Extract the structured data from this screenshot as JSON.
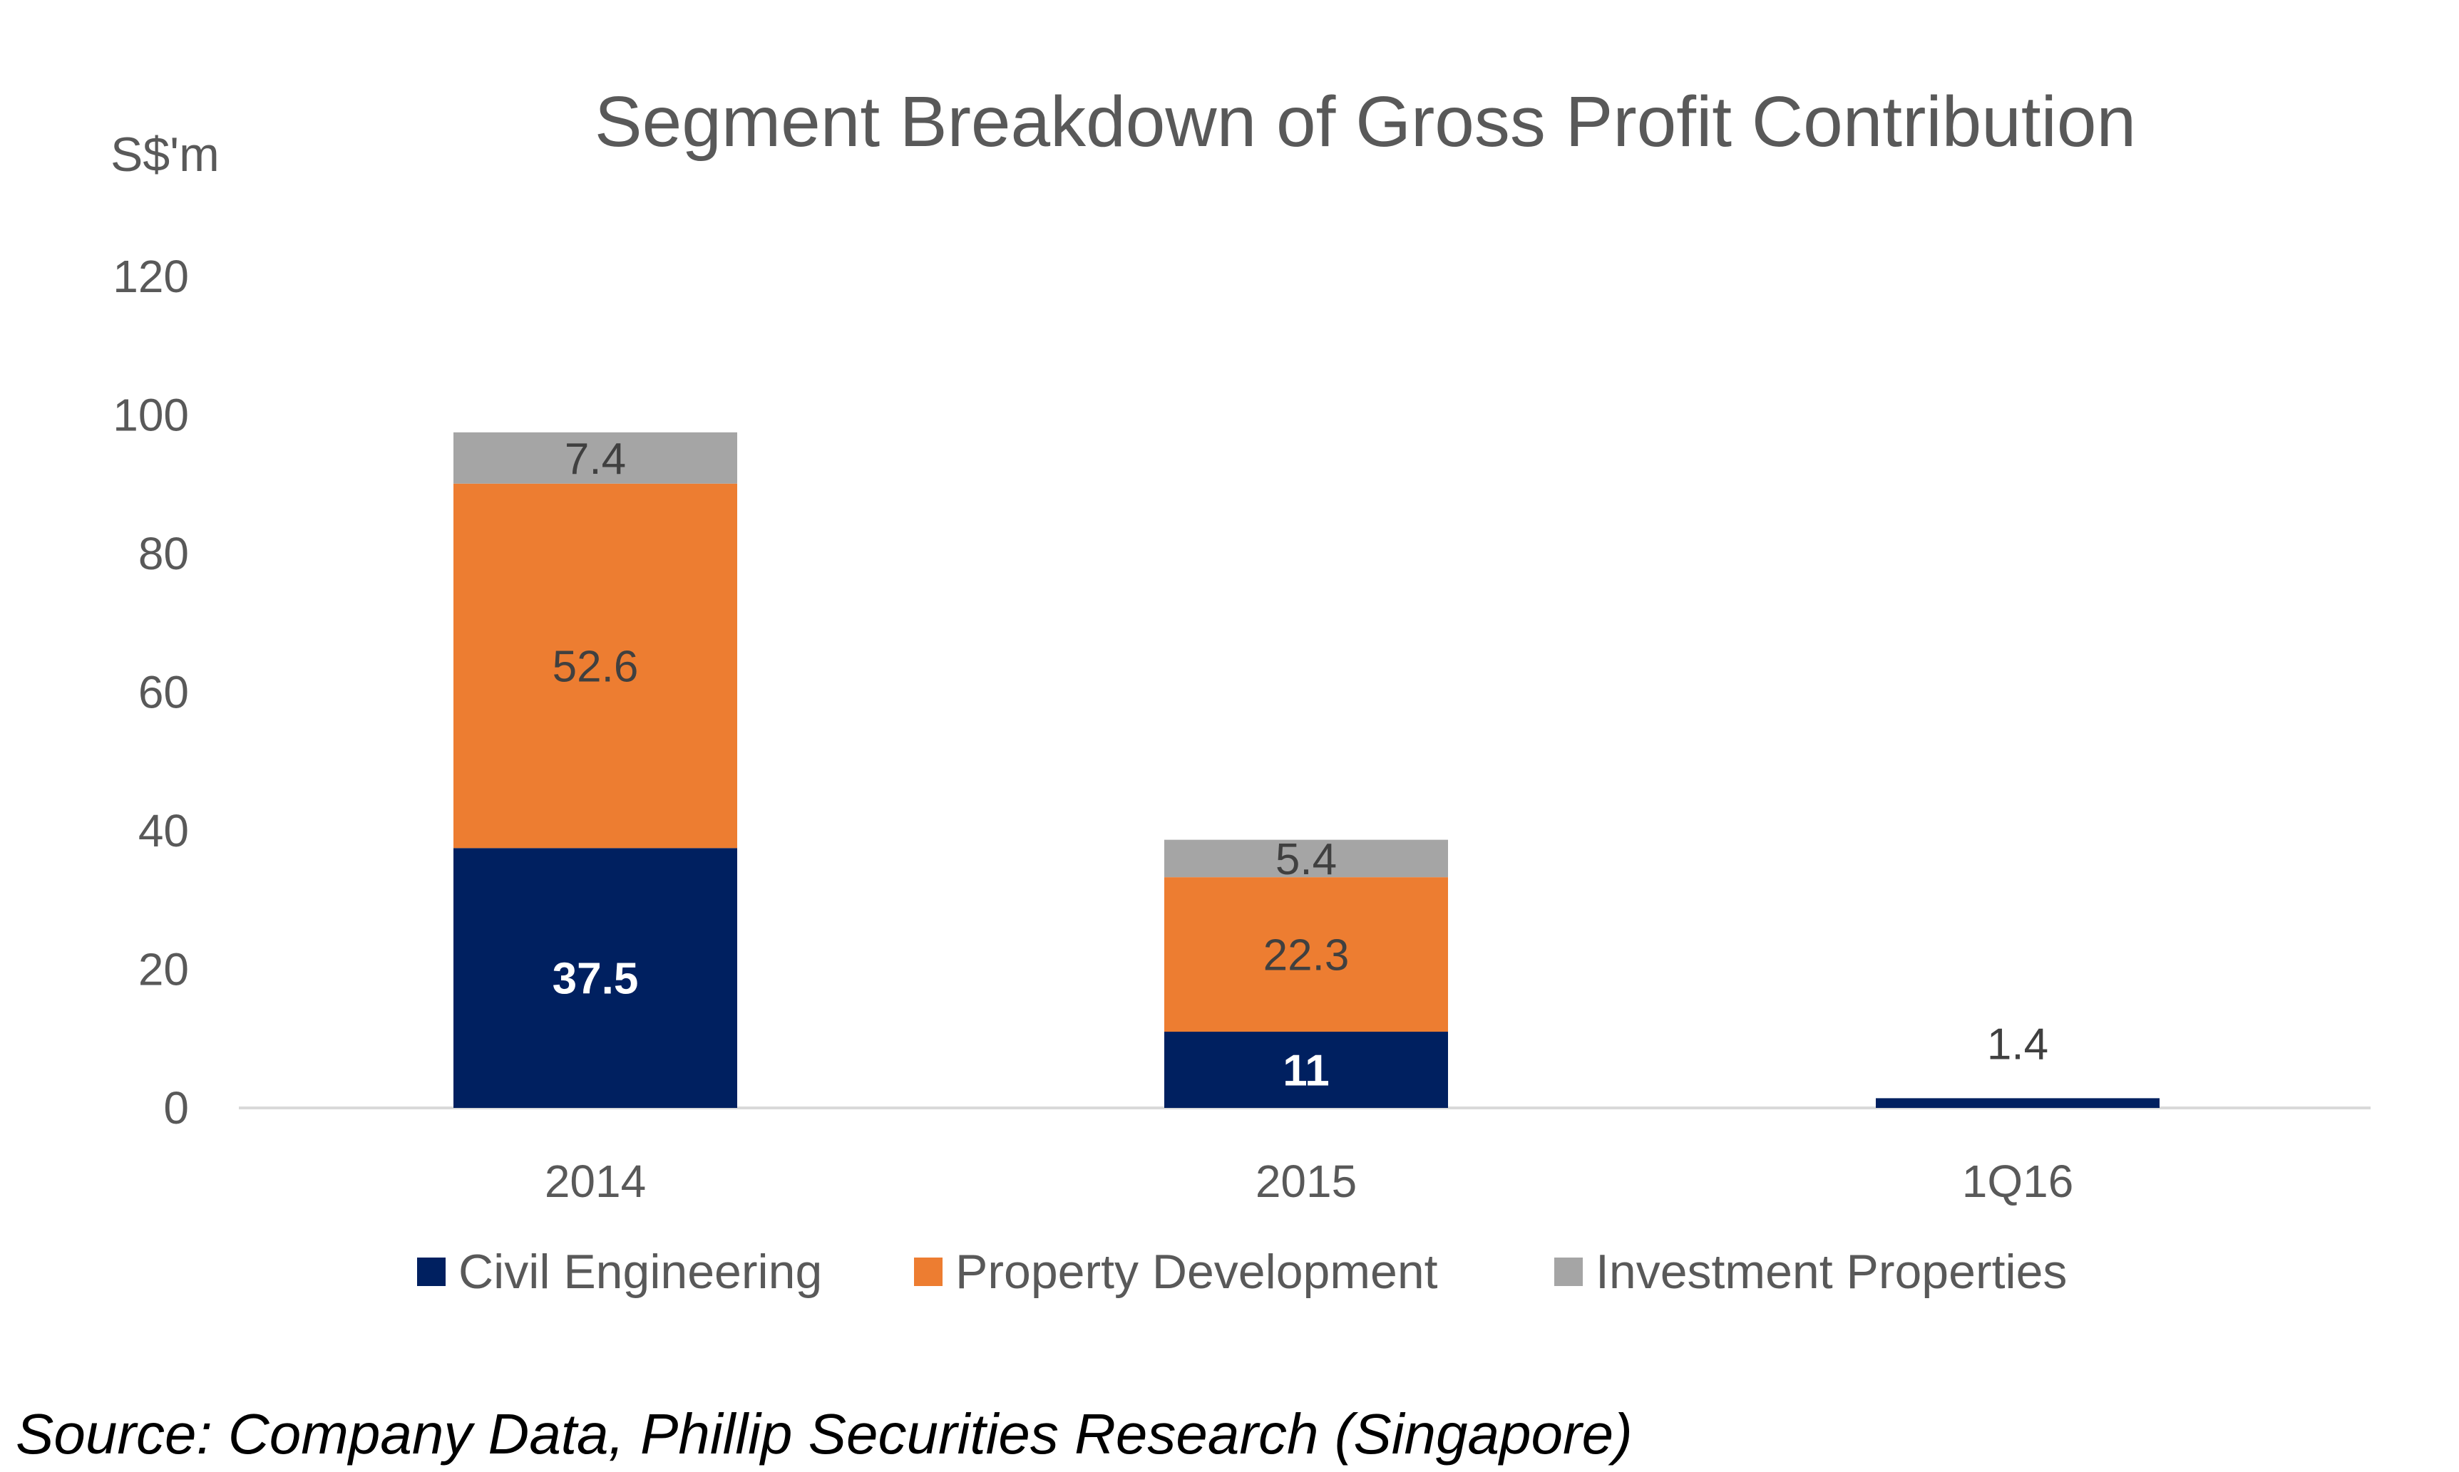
{
  "chart_data": {
    "type": "bar",
    "stacked": true,
    "title": "Segment Breakdown of Gross Profit Contribution",
    "ylabel": "S$'m",
    "ylim": [
      0,
      120
    ],
    "yticks": [
      "0",
      "20",
      "40",
      "60",
      "80",
      "100",
      "120"
    ],
    "categories": [
      "2014",
      "2015",
      "1Q16"
    ],
    "series": [
      {
        "name": "Civil Engineering",
        "color": "#002060",
        "values": [
          37.5,
          11,
          1.4
        ],
        "labels": [
          "37.5",
          "11",
          "1.4"
        ]
      },
      {
        "name": "Property Development",
        "color": "#ED7D31",
        "values": [
          52.6,
          22.3,
          0
        ],
        "labels": [
          "52.6",
          "22.3",
          ""
        ]
      },
      {
        "name": "Investment Properties",
        "color": "#A5A5A5",
        "values": [
          7.4,
          5.4,
          0
        ],
        "labels": [
          "7.4",
          "5.4",
          ""
        ]
      }
    ],
    "grid": false,
    "legend_position": "bottom"
  },
  "source": "Source: Company Data, Phillip Securities Research (Singapore)"
}
